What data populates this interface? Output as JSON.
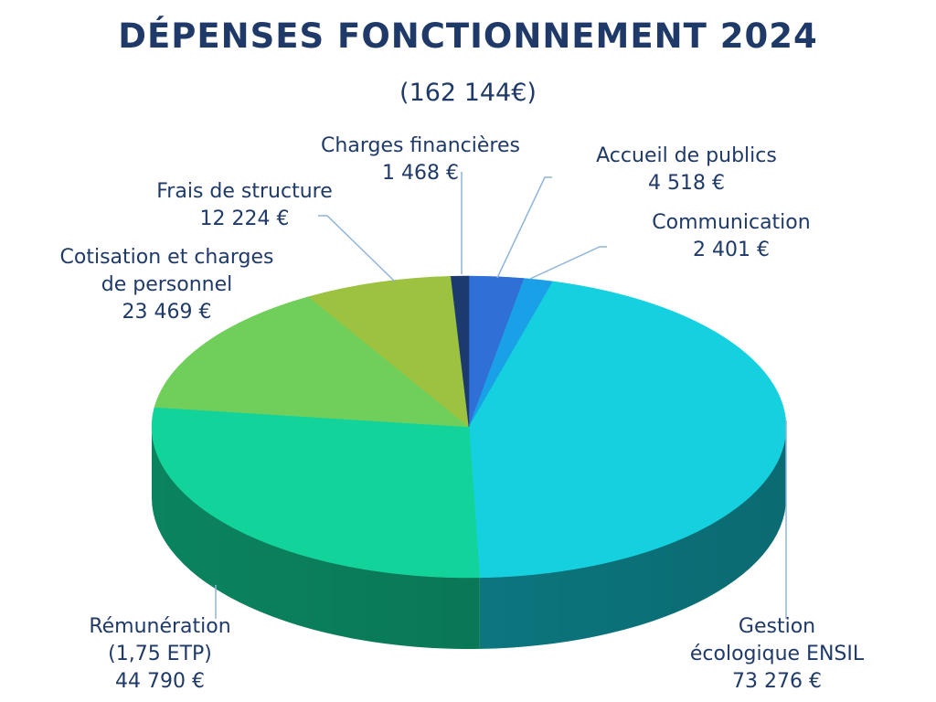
{
  "chart_data": {
    "type": "pie",
    "title": "DÉPENSES FONCTIONNEMENT 2024",
    "subtitle": "(162 144€)",
    "slices": [
      {
        "name": "Accueil de publics",
        "value": 4518,
        "value_label": "4 518 €",
        "color": "#2f6fd6"
      },
      {
        "name": "Communication",
        "value": 2401,
        "value_label": "2 401 €",
        "color": "#1aa0e6"
      },
      {
        "name": "Gestion écologique ENSIL",
        "value": 73276,
        "value_label": "73 276 €",
        "color": "#15d0df"
      },
      {
        "name": "Rémunération (1,75 ETP)",
        "value": 44790,
        "value_label": "44 790 €",
        "color": "#12d39a"
      },
      {
        "name": "Cotisation et charges de personnel",
        "value": 23469,
        "value_label": "23 469 €",
        "color": "#6fcf5a"
      },
      {
        "name": "Frais de structure",
        "value": 12224,
        "value_label": "12 224 €",
        "color": "#9cc23f"
      },
      {
        "name": "Charges financières",
        "value": 1468,
        "value_label": "1 468 €",
        "color": "#1c3a6e"
      }
    ]
  },
  "labels": {
    "charges_fin": {
      "line1": "Charges financières",
      "line2": "1 468 €"
    },
    "accueil": {
      "line1": "Accueil de publics",
      "line2": "4 518 €"
    },
    "communication": {
      "line1": "Communication",
      "line2": "2 401 €"
    },
    "frais": {
      "line1": "Frais de structure",
      "line2": "12 224 €"
    },
    "cotisation": {
      "line1": "Cotisation et charges",
      "line2": "de personnel",
      "line3": "23 469 €"
    },
    "remuneration": {
      "line1": "Rémunération",
      "line2": "(1,75 ETP)",
      "line3": "44 790 €"
    },
    "gestion": {
      "line1": "Gestion",
      "line2": "écologique ENSIL",
      "line3": "73 276 €"
    }
  }
}
